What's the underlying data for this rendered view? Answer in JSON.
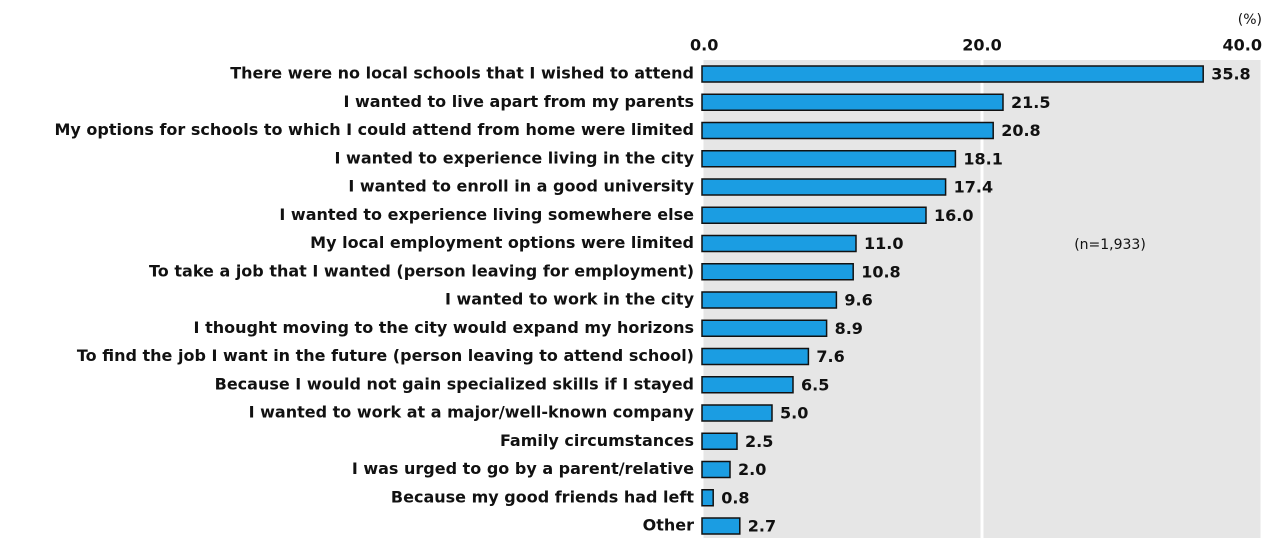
{
  "chart_data": {
    "type": "hbar",
    "unit_label": "(%)",
    "annotation": "(n=1,933)",
    "categories": [
      "There were no local schools that I wished to attend",
      "I wanted to live apart from my parents",
      "My options for schools to which I could attend from home were limited",
      "I wanted to experience living in the city",
      "I wanted to enroll in a good university",
      "I wanted to experience living somewhere else",
      "My local employment options were limited",
      "To take a job that I wanted (person leaving for employment)",
      "I wanted to work in the city",
      "I thought moving to the city would expand my horizons",
      "To find the job I want in the future (person leaving to attend school)",
      "Because I would not gain specialized skills if I stayed",
      "I wanted to work at a major/well-known company",
      "Family circumstances",
      "I was urged to go by a parent/relative",
      "Because my good friends had left",
      "Other"
    ],
    "values": [
      35.8,
      21.5,
      20.8,
      18.1,
      17.4,
      16.0,
      11.0,
      10.8,
      9.6,
      8.9,
      7.6,
      6.5,
      5.0,
      2.5,
      2.0,
      0.8,
      2.7
    ],
    "value_labels": [
      "35.8",
      "21.5",
      "20.8",
      "18.1",
      "17.4",
      "16.0",
      "11.0",
      "10.8",
      "9.6",
      "8.9",
      "7.6",
      "6.5",
      "5.0",
      "2.5",
      "2.0",
      "0.8",
      "2.7"
    ],
    "color": "#1b9de2",
    "xlim": [
      0,
      40
    ],
    "xticks": [
      {
        "value": 0,
        "label": "0.0"
      },
      {
        "value": 20,
        "label": "20.0"
      },
      {
        "value": 40,
        "label": "40.0"
      }
    ],
    "grid": true
  }
}
